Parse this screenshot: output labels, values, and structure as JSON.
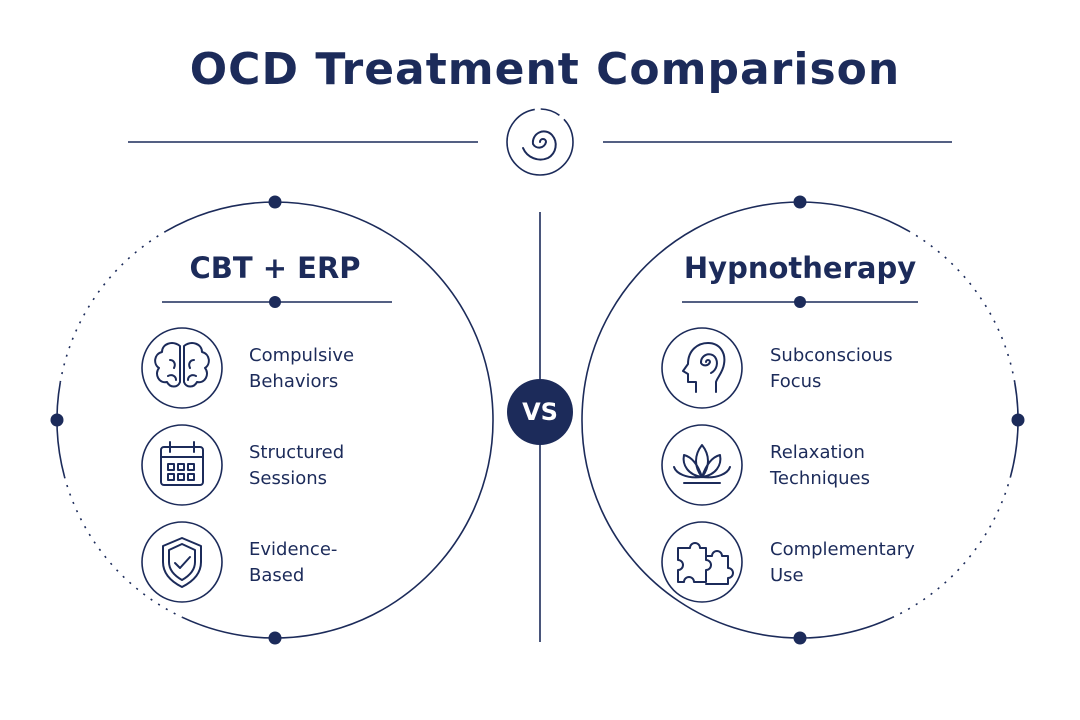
{
  "title": "OCD Treatment Comparison",
  "vs": "VS",
  "panels": [
    {
      "heading": "CBT + ERP",
      "items": [
        {
          "lines": [
            "Compulsive",
            "Behaviors"
          ]
        },
        {
          "lines": [
            "Structured",
            "Sessions"
          ]
        },
        {
          "lines": [
            "Evidence-",
            "Based"
          ]
        }
      ]
    },
    {
      "heading": "Hypnotherapy",
      "items": [
        {
          "lines": [
            "Subconscious",
            "Focus"
          ]
        },
        {
          "lines": [
            "Relaxation",
            "Techniques"
          ]
        },
        {
          "lines": [
            "Complementary",
            "Use"
          ]
        }
      ]
    }
  ]
}
